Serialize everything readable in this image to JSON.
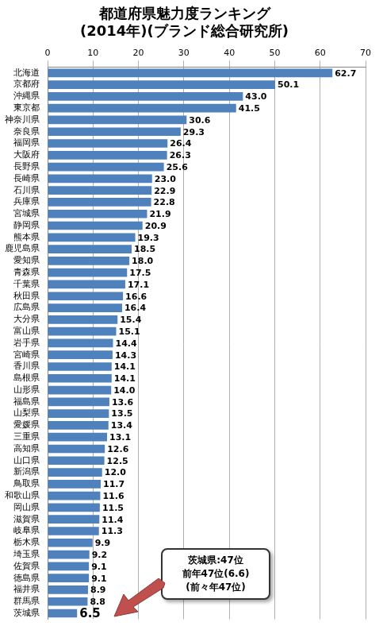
{
  "chart_data": {
    "type": "bar",
    "orientation": "horizontal",
    "title": [
      "都道府県魅力度ランキング",
      "(2014年)(ブランド総合研究所)"
    ],
    "categories": [
      "北海道",
      "京都府",
      "沖縄県",
      "東京都",
      "神奈川県",
      "奈良県",
      "福岡県",
      "大阪府",
      "長野県",
      "長崎県",
      "石川県",
      "兵庫県",
      "宮城県",
      "静岡県",
      "熊本県",
      "鹿児島県",
      "愛知県",
      "青森県",
      "千葉県",
      "秋田県",
      "広島県",
      "大分県",
      "富山県",
      "岩手県",
      "宮崎県",
      "香川県",
      "島根県",
      "山形県",
      "福島県",
      "山梨県",
      "愛媛県",
      "三重県",
      "高知県",
      "山口県",
      "新潟県",
      "鳥取県",
      "和歌山県",
      "岡山県",
      "滋賀県",
      "岐阜県",
      "栃木県",
      "埼玉県",
      "佐賀県",
      "徳島県",
      "福井県",
      "群馬県",
      "茨城県"
    ],
    "values": [
      62.7,
      50.1,
      43.0,
      41.5,
      30.6,
      29.3,
      26.4,
      26.3,
      25.6,
      23.0,
      22.9,
      22.8,
      21.9,
      20.9,
      19.3,
      18.5,
      18.0,
      17.5,
      17.1,
      16.6,
      16.4,
      15.4,
      15.1,
      14.4,
      14.3,
      14.1,
      14.1,
      14.0,
      13.6,
      13.5,
      13.4,
      13.1,
      12.6,
      12.5,
      12.0,
      11.7,
      11.6,
      11.5,
      11.4,
      11.3,
      9.9,
      9.2,
      9.1,
      9.1,
      8.9,
      8.8,
      6.5
    ],
    "value_labels": [
      "62.7",
      "50.1",
      "43.0",
      "41.5",
      "30.6",
      "29.3",
      "26.4",
      "26.3",
      "25.6",
      "23.0",
      "22.9",
      "22.8",
      "21.9",
      "20.9",
      "19.3",
      "18.5",
      "18.0",
      "17.5",
      "17.1",
      "16.6",
      "16.4",
      "15.4",
      "15.1",
      "14.4",
      "14.3",
      "14.1",
      "14.1",
      "14.0",
      "13.6",
      "13.5",
      "13.4",
      "13.1",
      "12.6",
      "12.5",
      "12.0",
      "11.7",
      "11.6",
      "11.5",
      "11.4",
      "11.3",
      "9.9",
      "9.2",
      "9.1",
      "9.1",
      "8.9",
      "8.8",
      "6.5"
    ],
    "color": "#4f81bd",
    "xlim": [
      0,
      70
    ],
    "xticks": [
      0,
      10,
      20,
      30,
      40,
      50,
      60,
      70
    ],
    "grid": true,
    "data_labels": true,
    "annotation": [
      "茨城県:47位",
      "前年47位(6.6)",
      "(前々年47位)"
    ]
  }
}
